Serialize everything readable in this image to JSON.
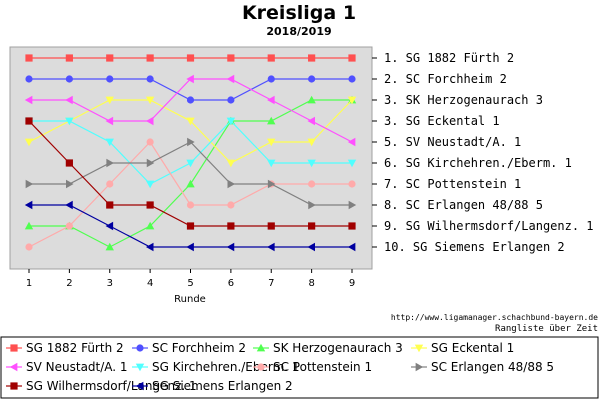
{
  "chart_data": {
    "type": "line",
    "title": "Kreisliga 1",
    "subtitle": "2018/2019",
    "xlabel": "Runde",
    "x": [
      1,
      2,
      3,
      4,
      5,
      6,
      7,
      8,
      9
    ],
    "ylim": [
      1,
      10
    ],
    "y_inverted": true,
    "grid": false,
    "plot_background": "#dcdcdc",
    "rank_labels": [
      "1. SG 1882 Fürth 2",
      "2. SC Forchheim 2",
      "3. SK Herzogenaurach 3",
      "3. SG Eckental 1",
      "5. SV Neustadt/A. 1",
      "6. SG Kirchehren./Eberm. 1",
      "7. SC Pottenstein 1",
      "8. SC Erlangen 48/88 5",
      "9. SG Wilhermsdorf/Langenz. 1",
      "10. SG Siemens Erlangen 2"
    ],
    "series": [
      {
        "name": "SG 1882 Fürth 2",
        "color": "#ff5050",
        "marker": "square",
        "values": [
          1,
          1,
          1,
          1,
          1,
          1,
          1,
          1,
          1
        ]
      },
      {
        "name": "SC Forchheim 2",
        "color": "#5050ff",
        "marker": "circle",
        "values": [
          2,
          2,
          2,
          2,
          3,
          3,
          2,
          2,
          2
        ]
      },
      {
        "name": "SK Herzogenaurach 3",
        "color": "#50ff50",
        "marker": "triangle-up",
        "values": [
          9,
          9,
          10,
          9,
          7,
          4,
          4,
          3,
          3
        ]
      },
      {
        "name": "SG Eckental 1",
        "color": "#ffff50",
        "marker": "triangle-down",
        "values": [
          5,
          4,
          3,
          3,
          4,
          6,
          5,
          5,
          3
        ]
      },
      {
        "name": "SV Neustadt/A. 1",
        "color": "#ff50ff",
        "marker": "triangle-left",
        "values": [
          3,
          3,
          4,
          4,
          2,
          2,
          3,
          4,
          5
        ]
      },
      {
        "name": "SG Kirchehren./Eberm. 1",
        "color": "#50ffff",
        "marker": "triangle-down",
        "values": [
          4,
          4,
          5,
          7,
          6,
          4,
          6,
          6,
          6
        ]
      },
      {
        "name": "SC Pottenstein 1",
        "color": "#ffaaaa",
        "marker": "circle",
        "values": [
          10,
          9,
          7,
          5,
          8,
          8,
          7,
          7,
          7
        ]
      },
      {
        "name": "SC Erlangen 48/88 5",
        "color": "#808080",
        "marker": "triangle-right",
        "values": [
          7,
          7,
          6,
          6,
          5,
          7,
          7,
          8,
          8
        ]
      },
      {
        "name": "SG Wilhermsdorf/Langenz. 1",
        "color": "#a00000",
        "marker": "square",
        "values": [
          4,
          6,
          8,
          8,
          9,
          9,
          9,
          9,
          9
        ]
      },
      {
        "name": "SG Siemens Erlangen 2",
        "color": "#0000a0",
        "marker": "triangle-left",
        "values": [
          8,
          8,
          9,
          10,
          10,
          10,
          10,
          10,
          10
        ]
      }
    ],
    "legend_position": "bottom",
    "credit_url": "http://www.ligamanager.schachbund-bayern.de",
    "credit_text": "Rangliste über Zeit"
  }
}
